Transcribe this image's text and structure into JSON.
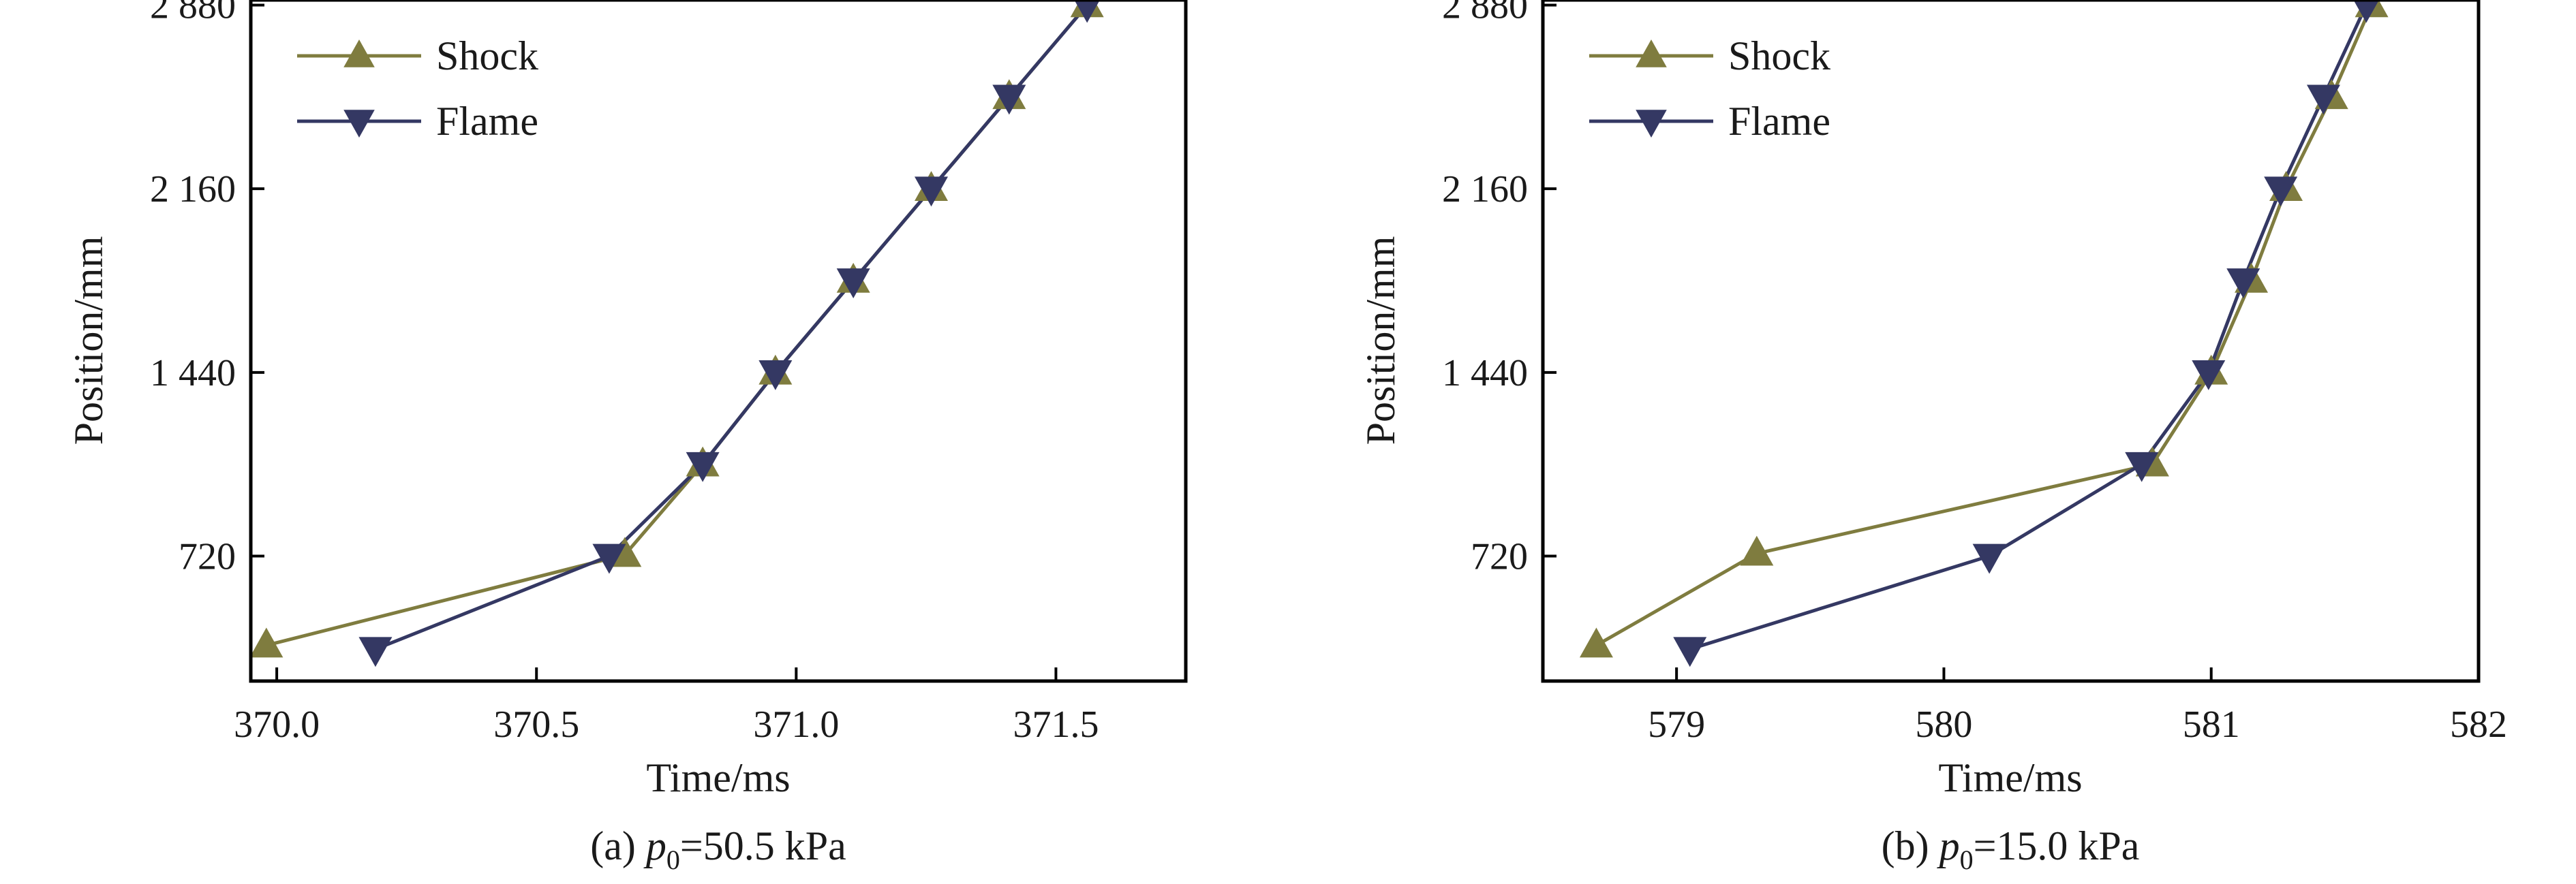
{
  "colors": {
    "shock": "#7f7c3f",
    "flame": "#343863",
    "axis": "#000000"
  },
  "legend": {
    "shock_label": "Shock",
    "flame_label": "Flame",
    "placement": "top-left"
  },
  "chart_data": [
    {
      "type": "line",
      "caption": "(a) p0=50.5 kPa",
      "caption_parts": {
        "prefix": "(a) ",
        "var": "p",
        "sub": "0",
        "rest": "=50.5 kPa"
      },
      "xlabel": "Time/ms",
      "ylabel": "Position/mm",
      "xlim": [
        369.95,
        371.75
      ],
      "ylim": [
        230,
        2900
      ],
      "xticks": [
        370.0,
        370.5,
        371.0,
        371.5
      ],
      "xtick_labels": [
        "370.0",
        "370.5",
        "371.0",
        "371.5"
      ],
      "yticks": [
        720,
        1440,
        2160,
        2880
      ],
      "ytick_labels": [
        "720",
        "1 440",
        "2 160",
        "2 880"
      ],
      "grid": false,
      "series": [
        {
          "name": "Shock",
          "marker": "triangle-up",
          "x": [
            369.98,
            370.67,
            370.82,
            370.96,
            371.11,
            371.26,
            371.41,
            371.56
          ],
          "y": [
            370,
            725,
            1080,
            1440,
            1800,
            2160,
            2520,
            2880
          ]
        },
        {
          "name": "Flame",
          "marker": "triangle-down",
          "x": [
            370.19,
            370.64,
            370.82,
            370.96,
            371.11,
            371.26,
            371.41,
            371.56
          ],
          "y": [
            355,
            720,
            1080,
            1440,
            1800,
            2160,
            2520,
            2880
          ]
        }
      ]
    },
    {
      "type": "line",
      "caption": "(b) p0=15.0 kPa",
      "caption_parts": {
        "prefix": "(b) ",
        "var": "p",
        "sub": "0",
        "rest": "=15.0 kPa"
      },
      "xlabel": "Time/ms",
      "ylabel": "Position/mm",
      "xlim": [
        578.5,
        582.0
      ],
      "ylim": [
        230,
        2900
      ],
      "xticks": [
        579,
        580,
        581,
        582
      ],
      "xtick_labels": [
        "579",
        "580",
        "581",
        "582"
      ],
      "yticks": [
        720,
        1440,
        2160,
        2880
      ],
      "ytick_labels": [
        "720",
        "1 440",
        "2 160",
        "2 880"
      ],
      "grid": false,
      "series": [
        {
          "name": "Shock",
          "marker": "triangle-up",
          "x": [
            578.7,
            579.3,
            580.78,
            581.0,
            581.15,
            581.28,
            581.45,
            581.6
          ],
          "y": [
            370,
            730,
            1080,
            1440,
            1800,
            2160,
            2520,
            2880
          ]
        },
        {
          "name": "Flame",
          "marker": "triangle-down",
          "x": [
            579.05,
            580.17,
            580.74,
            580.99,
            581.12,
            581.26,
            581.42,
            581.58
          ],
          "y": [
            355,
            720,
            1080,
            1440,
            1800,
            2160,
            2520,
            2880
          ]
        }
      ]
    }
  ]
}
